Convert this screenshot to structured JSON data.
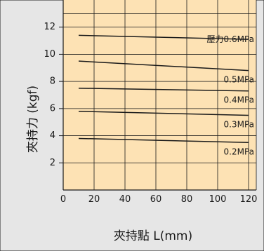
{
  "colors": {
    "background": "#e6e6e6",
    "plot_background": "#fde2b4",
    "grid": "#1a1a1a",
    "line": "#1a1a1a",
    "text": "#1a1a1a"
  },
  "chart_data": {
    "type": "line",
    "xlabel": "夾持點 L(mm)",
    "ylabel": "夾持力 (kgf)",
    "x_ticks": [
      0,
      20,
      40,
      60,
      80,
      100,
      120
    ],
    "y_ticks": [
      2,
      4,
      6,
      8,
      10,
      12
    ],
    "xlim": [
      0,
      125
    ],
    "ylim": [
      0,
      14
    ],
    "grid": true,
    "series": [
      {
        "name": "壓力0.6MPa",
        "x": [
          10,
          120
        ],
        "y": [
          11.4,
          11.1
        ]
      },
      {
        "name": "0.5MPa",
        "x": [
          10,
          120
        ],
        "y": [
          9.5,
          8.8
        ]
      },
      {
        "name": "0.4MPa",
        "x": [
          10,
          120
        ],
        "y": [
          7.5,
          7.3
        ]
      },
      {
        "name": "0.3MPa",
        "x": [
          10,
          120
        ],
        "y": [
          5.8,
          5.5
        ]
      },
      {
        "name": "0.2MPa",
        "x": [
          10,
          120
        ],
        "y": [
          3.8,
          3.5
        ]
      }
    ]
  }
}
